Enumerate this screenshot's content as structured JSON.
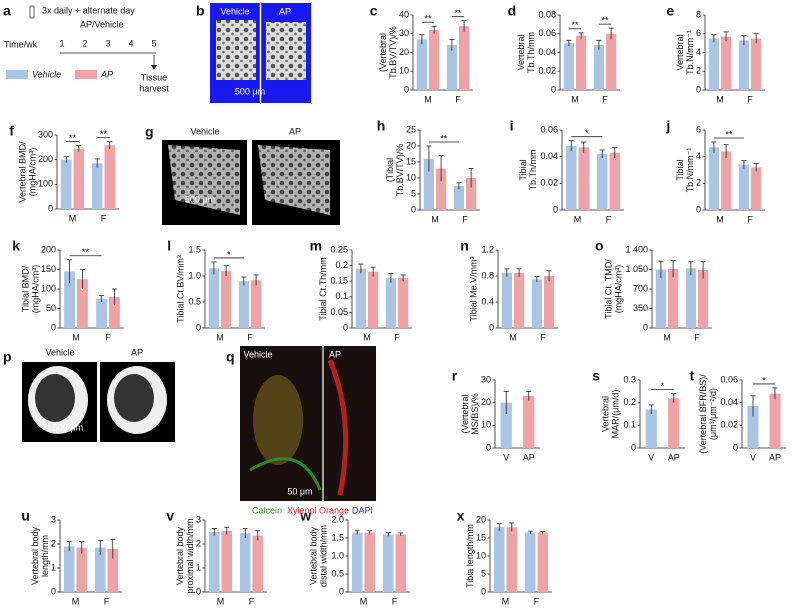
{
  "panels": {
    "a": {
      "letter": "a",
      "dose": "3x daily + alternate day",
      "treatment": "AP/Vehicle",
      "axis_label": "Time/wk",
      "weeks": [
        "1",
        "2",
        "3",
        "4",
        "5"
      ],
      "end": [
        "Tissue",
        "harvest"
      ]
    },
    "b": {
      "letter": "b",
      "left": "Vehicle",
      "right": "AP",
      "scale": "500 μm"
    },
    "g": {
      "letter": "g",
      "left": "Vehicle",
      "right": "AP",
      "scale": "500 μm"
    },
    "p": {
      "letter": "p",
      "left": "Vehicle",
      "right": "AP",
      "scale": "500 μm"
    },
    "q": {
      "letter": "q",
      "left": "Vehicle",
      "right": "AP",
      "scale": "50 μm",
      "stains": [
        "Calcein",
        "Xylenol Orange",
        "DAPI"
      ]
    }
  },
  "chart_data": [
    {
      "type": "bar",
      "panel": "c",
      "ylabel": [
        "(Vertebral",
        "Tb.BV/TV)/%"
      ],
      "categories": [
        "M",
        "F"
      ],
      "ylim": [
        0,
        40
      ],
      "yticks": [
        0,
        10,
        20,
        30,
        40
      ],
      "series": [
        {
          "name": "Vehicle",
          "color": "#a9c4e4",
          "values": [
            27,
            24
          ],
          "errors": [
            2.5,
            3
          ]
        },
        {
          "name": "AP",
          "color": "#f0a3a6",
          "values": [
            32,
            34
          ],
          "errors": [
            2,
            3
          ]
        }
      ],
      "annotations": [
        {
          "text": "**",
          "group": 0
        },
        {
          "text": "**",
          "group": 1
        }
      ]
    },
    {
      "type": "bar",
      "panel": "d",
      "ylabel": [
        "Vertebral",
        "Tb.Th/mm"
      ],
      "categories": [
        "M",
        "F"
      ],
      "ylim": [
        0,
        0.08
      ],
      "yticks": [
        0,
        0.02,
        0.04,
        0.06,
        0.08
      ],
      "series": [
        {
          "color": "#a9c4e4",
          "values": [
            0.05,
            0.048
          ],
          "errors": [
            0.003,
            0.005
          ]
        },
        {
          "color": "#f0a3a6",
          "values": [
            0.058,
            0.06
          ],
          "errors": [
            0.003,
            0.006
          ]
        }
      ],
      "annotations": [
        {
          "text": "**",
          "group": 0
        },
        {
          "text": "**",
          "group": 1
        }
      ]
    },
    {
      "type": "bar",
      "panel": "e",
      "ylabel": [
        "Vertebral",
        "Tb.N/mm⁻¹"
      ],
      "categories": [
        "M",
        "F"
      ],
      "ylim": [
        0,
        8
      ],
      "yticks": [
        0,
        2,
        4,
        6,
        8
      ],
      "series": [
        {
          "color": "#a9c4e4",
          "values": [
            5.5,
            5.3
          ],
          "errors": [
            0.4,
            0.5
          ]
        },
        {
          "color": "#f0a3a6",
          "values": [
            5.7,
            5.5
          ],
          "errors": [
            0.5,
            0.5
          ]
        }
      ]
    },
    {
      "type": "bar",
      "panel": "f",
      "ylabel": [
        "Vertebral BMD/",
        "(mgHA/cm³)"
      ],
      "categories": [
        "M",
        "F"
      ],
      "ylim": [
        0,
        300
      ],
      "yticks": [
        0,
        100,
        200,
        300
      ],
      "series": [
        {
          "color": "#a9c4e4",
          "values": [
            200,
            185
          ],
          "errors": [
            12,
            18
          ]
        },
        {
          "color": "#f0a3a6",
          "values": [
            245,
            258
          ],
          "errors": [
            12,
            15
          ]
        }
      ],
      "annotations": [
        {
          "text": "**",
          "group": 0
        },
        {
          "text": "**",
          "group": 1
        }
      ]
    },
    {
      "type": "bar",
      "panel": "h",
      "ylabel": [
        "(Tibial",
        "Tb.BV/TV)/%"
      ],
      "categories": [
        "M",
        "F"
      ],
      "ylim": [
        0,
        25
      ],
      "yticks": [
        0,
        5,
        10,
        15,
        20,
        25
      ],
      "series": [
        {
          "color": "#a9c4e4",
          "values": [
            16,
            7.5
          ],
          "errors": [
            4,
            1
          ]
        },
        {
          "color": "#f0a3a6",
          "values": [
            13,
            10
          ],
          "errors": [
            4,
            3
          ]
        }
      ],
      "annotations": [
        {
          "text": "**",
          "between": [
            0,
            1
          ]
        }
      ]
    },
    {
      "type": "bar",
      "panel": "i",
      "ylabel": [
        "Tibial",
        "Tb.Th/mm"
      ],
      "categories": [
        "M",
        "F"
      ],
      "ylim": [
        0,
        0.06
      ],
      "yticks": [
        0,
        0.02,
        0.04,
        0.06
      ],
      "series": [
        {
          "color": "#a9c4e4",
          "values": [
            0.048,
            0.042
          ],
          "errors": [
            0.004,
            0.003
          ]
        },
        {
          "color": "#f0a3a6",
          "values": [
            0.047,
            0.043
          ],
          "errors": [
            0.004,
            0.004
          ]
        }
      ],
      "annotations": [
        {
          "text": "*",
          "between": [
            0,
            1
          ]
        }
      ]
    },
    {
      "type": "bar",
      "panel": "j",
      "ylabel": [
        "Tibial",
        "Tb.N/mm⁻¹"
      ],
      "categories": [
        "M",
        "F"
      ],
      "ylim": [
        0,
        6
      ],
      "yticks": [
        0,
        2,
        4,
        6
      ],
      "series": [
        {
          "color": "#a9c4e4",
          "values": [
            4.7,
            3.4
          ],
          "errors": [
            0.4,
            0.3
          ]
        },
        {
          "color": "#f0a3a6",
          "values": [
            4.4,
            3.2
          ],
          "errors": [
            0.5,
            0.3
          ]
        }
      ],
      "annotations": [
        {
          "text": "**",
          "between": [
            0,
            1
          ]
        }
      ]
    },
    {
      "type": "bar",
      "panel": "k",
      "ylabel": [
        "Tibial BMD/",
        "(mgHA/cm³)"
      ],
      "categories": [
        "M",
        "F"
      ],
      "ylim": [
        0,
        200
      ],
      "yticks": [
        0,
        50,
        100,
        150,
        200
      ],
      "series": [
        {
          "color": "#a9c4e4",
          "values": [
            145,
            75
          ],
          "errors": [
            30,
            8
          ]
        },
        {
          "color": "#f0a3a6",
          "values": [
            125,
            80
          ],
          "errors": [
            25,
            20
          ]
        }
      ],
      "annotations": [
        {
          "text": "**",
          "between": [
            0,
            1
          ]
        }
      ]
    },
    {
      "type": "bar",
      "panel": "l",
      "ylabel": [
        "Tibial Ct.BV/mm³"
      ],
      "categories": [
        "M",
        "F"
      ],
      "ylim": [
        0,
        1.5
      ],
      "yticks": [
        0,
        0.5,
        {
          "value": 1,
          "label": "1.0"
        },
        1.5
      ],
      "series": [
        {
          "color": "#a9c4e4",
          "values": [
            1.15,
            0.9
          ],
          "errors": [
            0.12,
            0.08
          ]
        },
        {
          "color": "#f0a3a6",
          "values": [
            1.1,
            0.92
          ],
          "errors": [
            0.1,
            0.1
          ]
        }
      ],
      "annotations": [
        {
          "text": "*",
          "between": [
            0,
            1
          ]
        }
      ]
    },
    {
      "type": "bar",
      "panel": "m",
      "ylabel": [
        "Tibial Ct.Th/mm"
      ],
      "categories": [
        "M",
        "F"
      ],
      "ylim": [
        0,
        0.25
      ],
      "yticks": [
        0,
        0.05,
        0.1,
        0.15,
        0.2,
        0.25
      ],
      "series": [
        {
          "color": "#a9c4e4",
          "values": [
            0.19,
            0.16
          ],
          "errors": [
            0.015,
            0.015
          ]
        },
        {
          "color": "#f0a3a6",
          "values": [
            0.18,
            0.16
          ],
          "errors": [
            0.015,
            0.01
          ]
        }
      ]
    },
    {
      "type": "bar",
      "panel": "n",
      "ylabel": [
        "Tibial Me.V/mm³"
      ],
      "categories": [
        "M",
        "F"
      ],
      "ylim": [
        0,
        1.2
      ],
      "yticks": [
        0,
        0.4,
        0.8,
        1.2
      ],
      "series": [
        {
          "color": "#a9c4e4",
          "values": [
            0.85,
            0.75
          ],
          "errors": [
            0.06,
            0.04
          ]
        },
        {
          "color": "#f0a3a6",
          "values": [
            0.85,
            0.8
          ],
          "errors": [
            0.06,
            0.08
          ]
        }
      ]
    },
    {
      "type": "bar",
      "panel": "o",
      "ylabel": [
        "Tibial Ct. TMD/",
        "(mgHA/cm³)"
      ],
      "categories": [
        "M",
        "F"
      ],
      "ylim": [
        0,
        1400
      ],
      "yticks": [
        0,
        350,
        700,
        {
          "value": 1050,
          "label": "1 050"
        },
        {
          "value": 1400,
          "label": "1 400"
        }
      ],
      "series": [
        {
          "color": "#a9c4e4",
          "values": [
            1050,
            1070
          ],
          "errors": [
            150,
            120
          ]
        },
        {
          "color": "#f0a3a6",
          "values": [
            1060,
            1040
          ],
          "errors": [
            150,
            150
          ]
        }
      ]
    },
    {
      "type": "bar",
      "panel": "r",
      "ylabel": [
        "(Vertebral",
        "MS/BS)/%"
      ],
      "categories": [
        "V",
        "AP"
      ],
      "ylim": [
        0,
        30
      ],
      "yticks": [
        0,
        10,
        20,
        30
      ],
      "values": [
        20,
        23
      ],
      "errors": [
        5,
        2
      ],
      "colors": [
        "#a9c4e4",
        "#f0a3a6"
      ]
    },
    {
      "type": "bar",
      "panel": "s",
      "ylabel": [
        "Vertebral",
        "MAR/(μm/d)"
      ],
      "categories": [
        "V",
        "AP"
      ],
      "ylim": [
        0,
        0.3
      ],
      "yticks": [
        0,
        0.1,
        0.2,
        0.3
      ],
      "values": [
        0.17,
        0.22
      ],
      "errors": [
        0.02,
        0.02
      ],
      "colors": [
        "#a9c4e4",
        "#f0a3a6"
      ],
      "annotations": [
        {
          "text": "*",
          "between": [
            0,
            1
          ]
        }
      ]
    },
    {
      "type": "bar",
      "panel": "t",
      "ylabel": [
        "(Vertebral BFR/BS)/",
        "(μm³/μm⁻²/d)"
      ],
      "categories": [
        "V",
        "AP"
      ],
      "ylim": [
        0,
        0.06
      ],
      "yticks": [
        0,
        0.02,
        0.04,
        0.06
      ],
      "values": [
        0.037,
        0.048
      ],
      "errors": [
        0.009,
        0.005
      ],
      "colors": [
        "#a9c4e4",
        "#f0a3a6"
      ],
      "annotations": [
        {
          "text": "*",
          "between": [
            0,
            1
          ]
        }
      ]
    },
    {
      "type": "bar",
      "panel": "u",
      "ylabel": [
        "Vertebral body",
        "length/mm"
      ],
      "categories": [
        "M",
        "F"
      ],
      "ylim": [
        0,
        3
      ],
      "yticks": [
        0,
        1,
        2,
        3
      ],
      "series": [
        {
          "color": "#a9c4e4",
          "values": [
            1.9,
            1.85
          ],
          "errors": [
            0.2,
            0.3
          ]
        },
        {
          "color": "#f0a3a6",
          "values": [
            1.85,
            1.8
          ],
          "errors": [
            0.25,
            0.4
          ]
        }
      ]
    },
    {
      "type": "bar",
      "panel": "v",
      "ylabel": [
        "Vertebral body",
        "proximal width/mm"
      ],
      "categories": [
        "M",
        "F"
      ],
      "ylim": [
        0,
        3
      ],
      "yticks": [
        0,
        1,
        2,
        3
      ],
      "series": [
        {
          "color": "#a9c4e4",
          "values": [
            2.5,
            2.45
          ],
          "errors": [
            0.15,
            0.2
          ]
        },
        {
          "color": "#f0a3a6",
          "values": [
            2.55,
            2.35
          ],
          "errors": [
            0.15,
            0.2
          ]
        }
      ]
    },
    {
      "type": "bar",
      "panel": "w",
      "ylabel": [
        "Vertebral body",
        "distal width/mm"
      ],
      "categories": [
        "M",
        "F"
      ],
      "ylim": [
        0,
        2
      ],
      "yticks": [
        0,
        0.5,
        {
          "value": 1,
          "label": "1.0"
        },
        1.5,
        {
          "value": 2,
          "label": "2.0"
        }
      ],
      "series": [
        {
          "color": "#a9c4e4",
          "values": [
            1.65,
            1.6
          ],
          "errors": [
            0.05,
            0.05
          ]
        },
        {
          "color": "#f0a3a6",
          "values": [
            1.65,
            1.6
          ],
          "errors": [
            0.05,
            0.04
          ]
        }
      ]
    },
    {
      "type": "bar",
      "panel": "x",
      "ylabel": [
        "Tibia length/mm"
      ],
      "categories": [
        "M",
        "F"
      ],
      "ylim": [
        0,
        20
      ],
      "yticks": [
        0,
        5,
        10,
        15,
        20
      ],
      "series": [
        {
          "color": "#a9c4e4",
          "values": [
            18,
            16.5
          ],
          "errors": [
            1,
            0.4
          ]
        },
        {
          "color": "#f0a3a6",
          "values": [
            18,
            16.5
          ],
          "errors": [
            1.2,
            0.3
          ]
        }
      ]
    }
  ]
}
